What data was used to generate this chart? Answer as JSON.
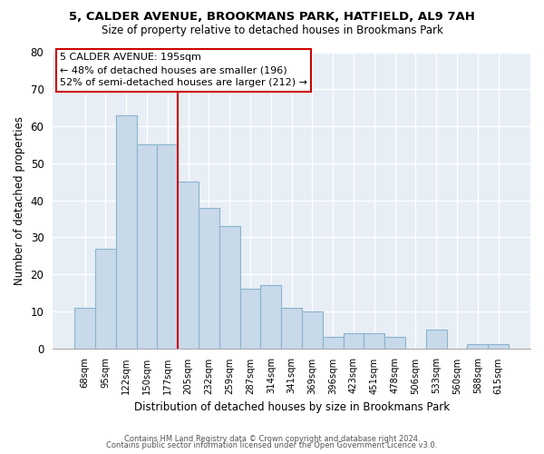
{
  "title": "5, CALDER AVENUE, BROOKMANS PARK, HATFIELD, AL9 7AH",
  "subtitle": "Size of property relative to detached houses in Brookmans Park",
  "xlabel": "Distribution of detached houses by size in Brookmans Park",
  "ylabel": "Number of detached properties",
  "bar_labels": [
    "68sqm",
    "95sqm",
    "122sqm",
    "150sqm",
    "177sqm",
    "205sqm",
    "232sqm",
    "259sqm",
    "287sqm",
    "314sqm",
    "341sqm",
    "369sqm",
    "396sqm",
    "423sqm",
    "451sqm",
    "478sqm",
    "506sqm",
    "533sqm",
    "560sqm",
    "588sqm",
    "615sqm"
  ],
  "bar_values": [
    11,
    27,
    63,
    55,
    55,
    45,
    38,
    33,
    16,
    17,
    11,
    10,
    3,
    4,
    4,
    3,
    0,
    5,
    0,
    1,
    1
  ],
  "bar_color": "#c8d9ea",
  "bar_edge_color": "#8ab4ce",
  "bg_color": "#e8eef5",
  "ylim": [
    0,
    80
  ],
  "yticks": [
    0,
    10,
    20,
    30,
    40,
    50,
    60,
    70,
    80
  ],
  "vline_x": 4.5,
  "vline_color": "#cc0000",
  "annotation_title": "5 CALDER AVENUE: 195sqm",
  "annotation_line1": "← 48% of detached houses are smaller (196)",
  "annotation_line2": "52% of semi-detached houses are larger (212) →",
  "footnote1": "Contains HM Land Registry data © Crown copyright and database right 2024.",
  "footnote2": "Contains public sector information licensed under the Open Government Licence v3.0."
}
